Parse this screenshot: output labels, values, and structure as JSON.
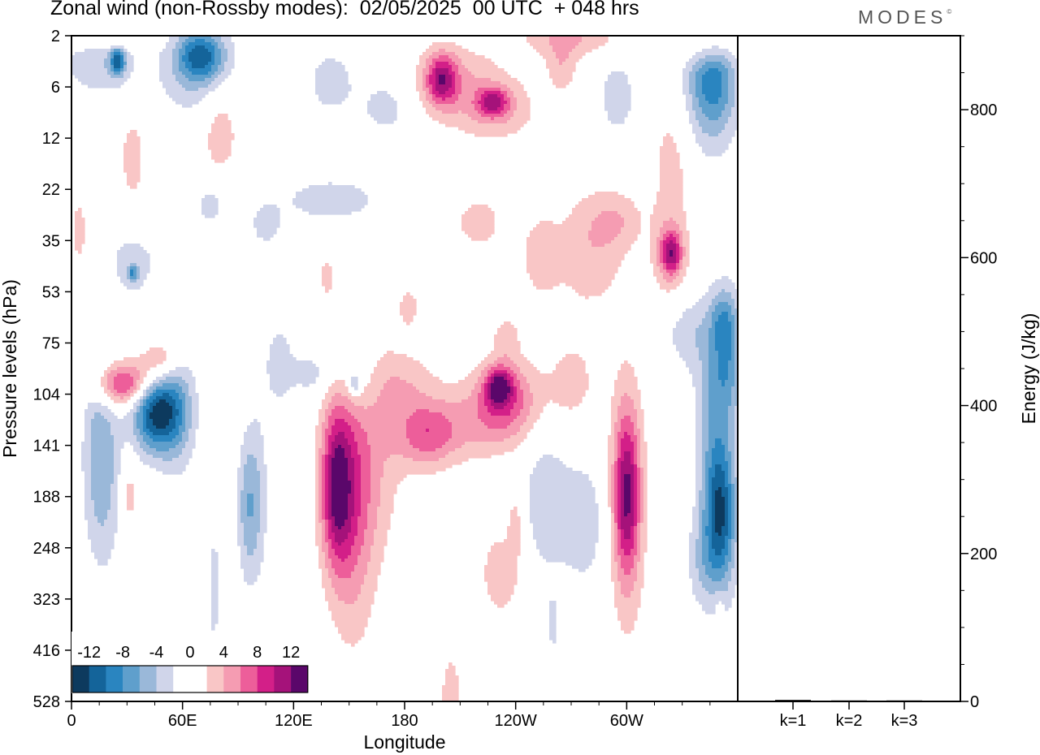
{
  "title": "Zonal wind (non-Rossby modes):  02/05/2025  00 UTC  + 048 hrs",
  "logo": "MODES",
  "logo_mark": "©",
  "chart_data": [
    {
      "type": "heatmap",
      "xlabel": "Longitude",
      "ylabel": "Pressure levels (hPa)",
      "x_ticks": [
        {
          "label": "0",
          "lon": 0
        },
        {
          "label": "60E",
          "lon": 60
        },
        {
          "label": "120E",
          "lon": 120
        },
        {
          "label": "180",
          "lon": 180
        },
        {
          "label": "120W",
          "lon": 240
        },
        {
          "label": "60W",
          "lon": 300
        }
      ],
      "xlim": [
        0,
        360
      ],
      "y_levels": [
        "2",
        "6",
        "12",
        "22",
        "35",
        "53",
        "75",
        "104",
        "141",
        "188",
        "248",
        "323",
        "416",
        "528"
      ],
      "legend_labels": [
        "-12",
        "-8",
        "-4",
        "0",
        "4",
        "8",
        "12"
      ],
      "color_scale": [
        "#0d3a5e",
        "#14649a",
        "#2a85c0",
        "#5f9fcc",
        "#9ab8d9",
        "#d0d5ea",
        "#ffffff",
        "#ffffff",
        "#f9c6c6",
        "#f59cb2",
        "#ed5e9a",
        "#d31f88",
        "#a5127a",
        "#5a076a"
      ],
      "blobs": [
        {
          "lon": 46,
          "lev": 7.35,
          "lw": 9,
          "lh": 0.55,
          "v": -13
        },
        {
          "lon": 28,
          "lev": 6.8,
          "lw": 11,
          "lh": 0.3,
          "v": 9.5
        },
        {
          "lon": 48,
          "lev": 6.35,
          "lw": 8,
          "lh": 0.3,
          "v": 5
        },
        {
          "lon": 14,
          "lev": 7.9,
          "lw": 6,
          "lh": 1.4,
          "v": -3
        },
        {
          "lon": 18,
          "lev": 8.6,
          "lw": 7,
          "lh": 1.3,
          "v": -3.5
        },
        {
          "lon": 58,
          "lev": 7.3,
          "lw": 7,
          "lh": 0.9,
          "v": -4
        },
        {
          "lon": 143,
          "lev": 8.8,
          "lw": 6,
          "lh": 1.1,
          "v": 10
        },
        {
          "lon": 152,
          "lev": 9.4,
          "lw": 9,
          "lh": 1.8,
          "v": 5
        },
        {
          "lon": 160,
          "lev": 8.2,
          "lw": 14,
          "lh": 1.4,
          "v": 3.5
        },
        {
          "lon": 192,
          "lev": 7.8,
          "lw": 12,
          "lh": 0.45,
          "v": 6
        },
        {
          "lon": 235,
          "lev": 7.1,
          "lw": 13,
          "lh": 0.55,
          "v": 7
        },
        {
          "lon": 231,
          "lev": 6.85,
          "lw": 5,
          "lh": 0.25,
          "v": 9
        },
        {
          "lon": 215,
          "lev": 7.6,
          "lw": 20,
          "lh": 0.5,
          "v": 3
        },
        {
          "lon": 300,
          "lev": 8.95,
          "lw": 5,
          "lh": 1.1,
          "v": 9
        },
        {
          "lon": 300,
          "lev": 9.1,
          "lw": 7,
          "lh": 1.9,
          "v": 4
        },
        {
          "lon": 351,
          "lev": 9.4,
          "lw": 6,
          "lh": 1.0,
          "v": -10
        },
        {
          "lon": 347,
          "lev": 8.3,
          "lw": 7,
          "lh": 1.5,
          "v": -4
        },
        {
          "lon": 95,
          "lev": 9.2,
          "lw": 4,
          "lh": 1.0,
          "v": -5
        },
        {
          "lon": 101,
          "lev": 9.0,
          "lw": 4,
          "lh": 1.2,
          "v": -3
        },
        {
          "lon": 277,
          "lev": 9.5,
          "lw": 10,
          "lh": 1.0,
          "v": -3
        },
        {
          "lon": 255,
          "lev": 9.0,
          "lw": 9,
          "lh": 1.2,
          "v": -3
        },
        {
          "lon": 355,
          "lev": 6.2,
          "lw": 6,
          "lh": 0.8,
          "v": -4.5
        },
        {
          "lon": 350,
          "lev": 6.5,
          "lw": 9,
          "lh": 1.0,
          "v": -3
        },
        {
          "lon": 347,
          "lev": 0.8,
          "lw": 9,
          "lh": 0.75,
          "v": -7
        },
        {
          "lon": 342,
          "lev": 1.2,
          "lw": 12,
          "lh": 1.0,
          "v": -3
        },
        {
          "lon": 200,
          "lev": 0.85,
          "lw": 6,
          "lh": 0.35,
          "v": 9
        },
        {
          "lon": 208,
          "lev": 0.9,
          "lw": 18,
          "lh": 0.55,
          "v": 3.5
        },
        {
          "lon": 230,
          "lev": 1.45,
          "lw": 16,
          "lh": 0.45,
          "v": 3.5
        },
        {
          "lon": 228,
          "lev": 1.3,
          "lw": 6,
          "lh": 0.2,
          "v": 7
        },
        {
          "lon": 70,
          "lev": 0.4,
          "lw": 9,
          "lh": 0.35,
          "v": -9
        },
        {
          "lon": 67,
          "lev": 0.75,
          "lw": 15,
          "lh": 0.7,
          "v": -3.5
        },
        {
          "lon": 15,
          "lev": 0.5,
          "lw": 15,
          "lh": 0.5,
          "v": -3.5
        },
        {
          "lon": 25,
          "lev": 0.5,
          "lw": 3,
          "lh": 0.2,
          "v": -9
        },
        {
          "lon": 20,
          "lev": 0.05,
          "lw": 15,
          "lh": 0.15,
          "v": 4
        },
        {
          "lon": 270,
          "lev": 0.05,
          "lw": 20,
          "lh": 0.25,
          "v": 4
        },
        {
          "lon": 265,
          "lev": 0.6,
          "lw": 6,
          "lh": 0.35,
          "v": 3.5
        },
        {
          "lon": 345,
          "lev": 0.2,
          "lw": 10,
          "lh": 0.25,
          "v": 5
        },
        {
          "lon": 80,
          "lev": 1.8,
          "lw": 8,
          "lh": 0.7,
          "v": 3.5
        },
        {
          "lon": 33,
          "lev": 2.4,
          "lw": 5,
          "lh": 0.7,
          "v": 3
        },
        {
          "lon": 140,
          "lev": 0.9,
          "lw": 10,
          "lh": 0.5,
          "v": -3
        },
        {
          "lon": 280,
          "lev": 4.2,
          "lw": 13,
          "lh": 0.85,
          "v": 3.5
        },
        {
          "lon": 324,
          "lev": 4.25,
          "lw": 4,
          "lh": 0.3,
          "v": 8
        },
        {
          "lon": 323,
          "lev": 4.3,
          "lw": 7,
          "lh": 0.6,
          "v": 3.5
        },
        {
          "lon": 325,
          "lev": 2.4,
          "lw": 9,
          "lh": 1.1,
          "v": 3
        },
        {
          "lon": 253,
          "lev": 4.3,
          "lw": 8,
          "lh": 0.6,
          "v": 3
        },
        {
          "lon": 140,
          "lev": 3.2,
          "lw": 22,
          "lh": 0.35,
          "v": -3
        },
        {
          "lon": 220,
          "lev": 3.65,
          "lw": 10,
          "lh": 0.4,
          "v": 3
        },
        {
          "lon": 33,
          "lev": 4.45,
          "lw": 10,
          "lh": 0.5,
          "v": -3
        },
        {
          "lon": 33,
          "lev": 4.65,
          "lw": 2,
          "lh": 0.12,
          "v": -6
        },
        {
          "lon": 105,
          "lev": 3.7,
          "lw": 6,
          "lh": 0.3,
          "v": -3
        },
        {
          "lon": 4,
          "lev": 3.8,
          "lw": 3,
          "lh": 0.5,
          "v": 3
        },
        {
          "lon": 333,
          "lev": 5.8,
          "lw": 9,
          "lh": 0.5,
          "v": -3
        },
        {
          "lon": 352,
          "lev": 5.5,
          "lw": 5,
          "lh": 0.4,
          "v": -3.5
        },
        {
          "lon": 155,
          "lev": 6.7,
          "lw": 8,
          "lh": 0.5,
          "v": -3.5
        },
        {
          "lon": 153,
          "lev": 6.8,
          "lw": 2,
          "lh": 0.15,
          "v": -5
        },
        {
          "lon": 112,
          "lev": 6.4,
          "lw": 6,
          "lh": 0.65,
          "v": -3
        },
        {
          "lon": 130,
          "lev": 6.6,
          "lw": 8,
          "lh": 0.3,
          "v": -3
        },
        {
          "lon": 270,
          "lev": 6.8,
          "lw": 10,
          "lh": 0.6,
          "v": 3
        },
        {
          "lon": 235,
          "lev": 5.9,
          "lw": 5,
          "lh": 0.3,
          "v": 3
        },
        {
          "lon": 31,
          "lev": 9.0,
          "lw": 3,
          "lh": 0.55,
          "v": 3
        },
        {
          "lon": 232,
          "lev": 10.5,
          "lw": 8,
          "lh": 0.6,
          "v": 3.5
        },
        {
          "lon": 240,
          "lev": 9.5,
          "lw": 3,
          "lh": 0.5,
          "v": 3
        },
        {
          "lon": 178,
          "lev": 6.8,
          "lw": 15,
          "lh": 0.5,
          "v": 3
        },
        {
          "lon": 205,
          "lev": 12.9,
          "lw": 4,
          "lh": 0.6,
          "v": 3.5
        },
        {
          "lon": 350,
          "lev": 11.3,
          "lw": 1.5,
          "lh": 0.3,
          "v": 3
        },
        {
          "lon": 77,
          "lev": 10.8,
          "lw": 2.5,
          "lh": 0.9,
          "v": -3
        },
        {
          "lon": 260,
          "lev": 11.5,
          "lw": 2,
          "lh": 0.35,
          "v": -3
        },
        {
          "lon": 340,
          "lev": 10.3,
          "lw": 6,
          "lh": 0.6,
          "v": -3
        },
        {
          "lon": 295,
          "lev": 3.6,
          "lw": 10,
          "lh": 0.4,
          "v": 3
        },
        {
          "lon": 182,
          "lev": 5.3,
          "lw": 4,
          "lh": 0.3,
          "v": 3
        },
        {
          "lon": 138,
          "lev": 4.7,
          "lw": 3,
          "lh": 0.3,
          "v": 3
        },
        {
          "lon": 75,
          "lev": 3.3,
          "lw": 6,
          "lh": 0.3,
          "v": -3
        },
        {
          "lon": 295,
          "lev": 1.2,
          "lw": 8,
          "lh": 0.6,
          "v": -3
        },
        {
          "lon": 170,
          "lev": 1.4,
          "lw": 10,
          "lh": 0.4,
          "v": -3
        }
      ]
    },
    {
      "type": "bar",
      "categories": [
        "k=1",
        "k=2",
        "k=3"
      ],
      "values": [
        2,
        1,
        1
      ],
      "ylabel": "Energy (J/kg)",
      "ylim": [
        0,
        900
      ],
      "y_ticks": [
        "0",
        "200",
        "400",
        "600",
        "800"
      ],
      "y_tick_values": [
        0,
        200,
        400,
        600,
        800
      ]
    }
  ]
}
